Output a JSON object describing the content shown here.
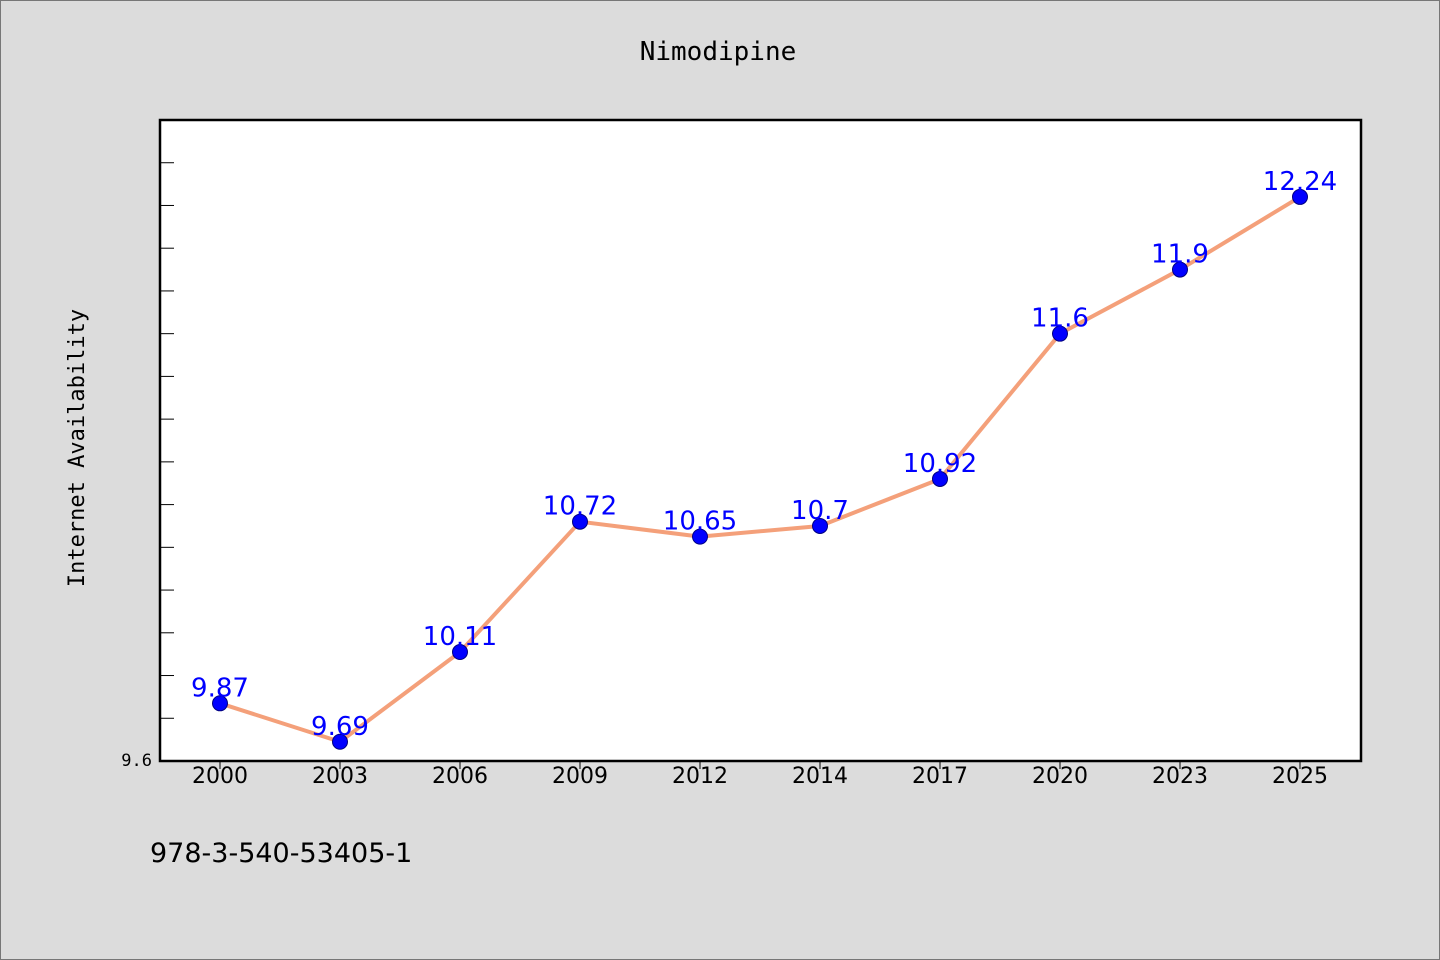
{
  "chart_data": {
    "type": "line",
    "title": "Nimodipine",
    "xlabel": "",
    "ylabel": "Internet Availability",
    "categories": [
      "2000",
      "2003",
      "2006",
      "2009",
      "2012",
      "2014",
      "2017",
      "2020",
      "2023",
      "2025"
    ],
    "values": [
      9.87,
      9.69,
      10.11,
      10.72,
      10.65,
      10.7,
      10.92,
      11.6,
      11.9,
      12.24
    ],
    "data_labels": [
      "9.87",
      "9.69",
      "10.11",
      "10.72",
      "10.65",
      "10.7",
      "10.92",
      "11.6",
      "11.9",
      "12.24"
    ],
    "ylim": [
      9.6,
      12.6
    ],
    "y_tick_label": "9.6",
    "grid": false,
    "line_color": "#f4a07a",
    "marker_color": "#0000ff",
    "label_color": "#0000ff"
  },
  "footer": {
    "text": "978-3-540-53405-1"
  }
}
